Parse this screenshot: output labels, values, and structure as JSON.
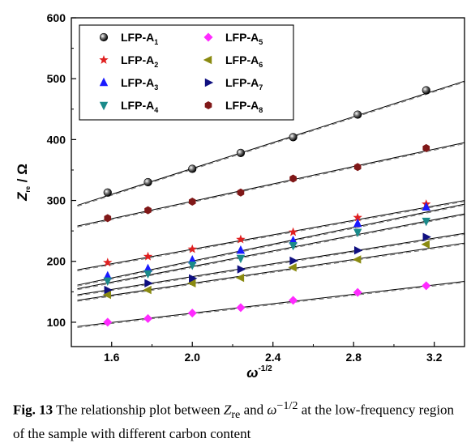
{
  "chart_data": {
    "type": "scatter",
    "xlabel": "ω-1/2",
    "ylabel": "Zre / Ω",
    "xlim": [
      1.4,
      3.35
    ],
    "ylim": [
      60,
      600
    ],
    "xticks": [
      "1.6",
      "2.0",
      "2.4",
      "2.8",
      "3.2"
    ],
    "yticks": [
      "100",
      "200",
      "300",
      "400",
      "500",
      "600"
    ],
    "legend_position": "top-left",
    "x": [
      1.58,
      1.78,
      2.0,
      2.24,
      2.5,
      2.82,
      3.16
    ],
    "series": [
      {
        "name": "LFP-A1",
        "base": "LFP-A",
        "sub": "1",
        "marker": "sphere",
        "color": "#111111",
        "values": [
          313,
          330,
          352,
          378,
          404,
          441,
          481
        ],
        "fit": [
          [
            1.43,
            292
          ],
          [
            3.35,
            496
          ]
        ]
      },
      {
        "name": "LFP-A2",
        "base": "LFP-A",
        "sub": "2",
        "marker": "star",
        "color": "#e02020",
        "values": [
          198,
          208,
          220,
          236,
          248,
          272,
          294
        ],
        "fit": [
          [
            1.43,
            186
          ],
          [
            3.35,
            300
          ]
        ]
      },
      {
        "name": "LFP-A3",
        "base": "LFP-A",
        "sub": "3",
        "marker": "triangle-up",
        "color": "#1a1aff",
        "values": [
          176,
          188,
          202,
          218,
          234,
          262,
          289
        ],
        "fit": [
          [
            1.43,
            161
          ],
          [
            3.35,
            294
          ]
        ]
      },
      {
        "name": "LFP-A4",
        "base": "LFP-A",
        "sub": "4",
        "marker": "triangle-down",
        "color": "#1a8a8a",
        "values": [
          168,
          180,
          194,
          205,
          226,
          248,
          266
        ],
        "fit": [
          [
            1.43,
            155
          ],
          [
            3.35,
            278
          ]
        ]
      },
      {
        "name": "LFP-A5",
        "base": "LFP-A",
        "sub": "5",
        "marker": "diamond",
        "color": "#ff2aff",
        "values": [
          100,
          106,
          115,
          124,
          136,
          149,
          160
        ],
        "fit": [
          [
            1.43,
            93
          ],
          [
            3.35,
            167
          ]
        ]
      },
      {
        "name": "LFP-A6",
        "base": "LFP-A",
        "sub": "6",
        "marker": "triangle-left",
        "color": "#8a8a10",
        "values": [
          145,
          153,
          164,
          173,
          190,
          203,
          228
        ],
        "fit": [
          [
            1.43,
            136
          ],
          [
            3.35,
            230
          ]
        ]
      },
      {
        "name": "LFP-A7",
        "base": "LFP-A",
        "sub": "7",
        "marker": "triangle-right",
        "color": "#101080",
        "values": [
          153,
          164,
          172,
          187,
          201,
          218,
          240
        ],
        "fit": [
          [
            1.43,
            145
          ],
          [
            3.35,
            246
          ]
        ]
      },
      {
        "name": "LFP-A8",
        "base": "LFP-A",
        "sub": "8",
        "marker": "hexagon",
        "color": "#801818",
        "values": [
          271,
          284,
          298,
          313,
          336,
          355,
          386
        ],
        "fit": [
          [
            1.43,
            258
          ],
          [
            3.35,
            395
          ]
        ]
      }
    ]
  },
  "caption": {
    "label": "Fig. 13",
    "text_1": "The relationship plot between",
    "zre": "Z",
    "zre_sub": "re",
    "text_2": "and",
    "omega": "ω",
    "omega_sup": "−1/2",
    "text_3": "at the low-frequency region of the sample with different carbon content"
  }
}
